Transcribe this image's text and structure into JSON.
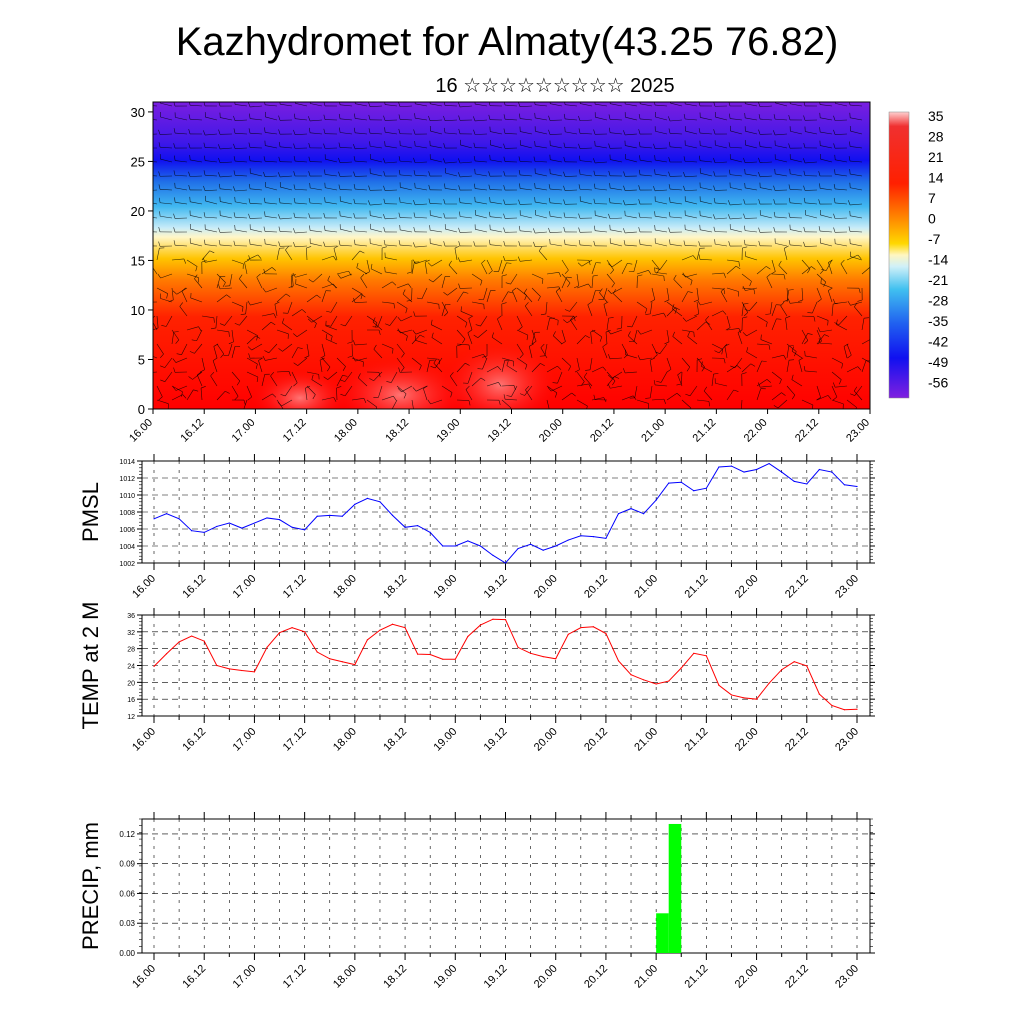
{
  "title": "Kazhydromet for Almaty(43.25 76.82)",
  "subtitle": "16 ☆☆☆☆☆☆☆☆☆ 2025",
  "time_labels": [
    "16.00",
    "16.12",
    "17.00",
    "17.12",
    "18.00",
    "18.12",
    "19.00",
    "19.12",
    "20.00",
    "20.12",
    "21.00",
    "21.12",
    "22.00",
    "22.12",
    "23.00"
  ],
  "chart_data": [
    {
      "type": "heatmap",
      "title": "Kazhydromet for Almaty(43.25 76.82)",
      "y_ticks": [
        0,
        5,
        10,
        15,
        20,
        25,
        30
      ],
      "ylim": [
        0,
        31
      ],
      "colorbar_labels": [
        "35",
        "28",
        "21",
        "14",
        "7",
        "0",
        "-7",
        "-14",
        "-21",
        "-28",
        "-35",
        "-42",
        "-49",
        "-56"
      ],
      "colors": {
        "hot": "#ff0000",
        "warm": "#ffc800",
        "neutral": "#fff0a0",
        "cool": "#30b0f0",
        "cold": "#2020ff",
        "coldest": "#7020e0"
      },
      "overlay": "wind barbs",
      "x_labels_ref": "time_labels"
    },
    {
      "type": "line",
      "ylabel": "PMSL",
      "ylim": [
        1002,
        1014
      ],
      "y_ticks": [
        1002,
        1004,
        1006,
        1008,
        1010,
        1012,
        1014
      ],
      "color": "#0000ff",
      "values": [
        1007.2,
        1007.8,
        1007.2,
        1005.8,
        1005.6,
        1006.3,
        1006.7,
        1006.1,
        1006.7,
        1007.3,
        1007.1,
        1006.2,
        1005.9,
        1007.5,
        1007.6,
        1007.5,
        1008.9,
        1009.6,
        1009.2,
        1007.6,
        1006.2,
        1006.4,
        1005.6,
        1004,
        1004,
        1004.6,
        1004,
        1002.9,
        1002,
        1003.7,
        1004.2,
        1003.5,
        1004,
        1004.7,
        1005.2,
        1005.1,
        1004.9,
        1007.8,
        1008.4,
        1007.8,
        1009.4,
        1011.4,
        1011.5,
        1010.5,
        1010.8,
        1013.3,
        1013.4,
        1012.7,
        1013,
        1013.7,
        1012.7,
        1011.6,
        1011.3,
        1013,
        1012.7,
        1011.2,
        1011
      ]
    },
    {
      "type": "line",
      "ylabel": "TEMP at 2 M",
      "ylim": [
        12,
        36
      ],
      "y_ticks": [
        12,
        16,
        20,
        24,
        28,
        32,
        36
      ],
      "color": "#ff0000",
      "values": [
        23.8,
        26.8,
        29.6,
        31,
        29.8,
        24,
        23.2,
        22.8,
        22.5,
        28.3,
        31.8,
        33,
        32,
        27.2,
        25.6,
        24.9,
        24.2,
        30.1,
        32.4,
        33.8,
        33,
        26.7,
        26.6,
        25.5,
        25.5,
        30.9,
        33.6,
        35,
        34.9,
        28.3,
        26.9,
        26.1,
        25.6,
        31.4,
        33,
        33.2,
        31.6,
        25.1,
        21.8,
        20.6,
        19.6,
        20.3,
        23.4,
        26.9,
        26.3,
        19.3,
        17,
        16.3,
        16,
        19.8,
        23,
        24.9,
        23.9,
        17.2,
        14.5,
        13.5,
        13.6
      ]
    },
    {
      "type": "bar",
      "ylabel": "PRECIP, mm",
      "ylim": [
        0,
        0.135
      ],
      "y_ticks": [
        "0.00",
        "0.03",
        "0.06",
        "0.09",
        "0.12"
      ],
      "color": "#00ff00",
      "values": [
        {
          "t": 21.0,
          "value": 0.04
        },
        {
          "t": 21.125,
          "value": 0.13
        }
      ]
    }
  ]
}
